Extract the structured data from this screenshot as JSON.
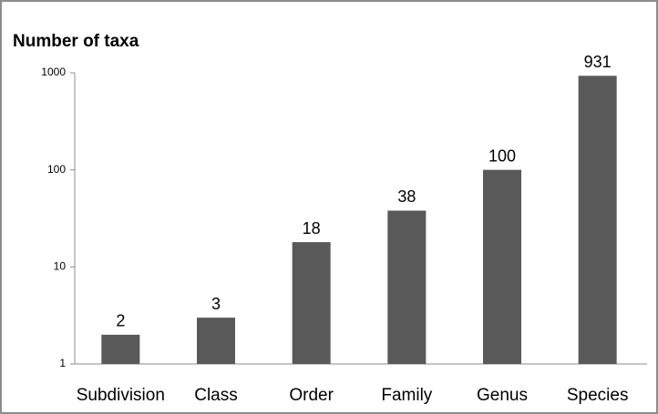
{
  "chart_data": {
    "type": "bar",
    "title": "Number of taxa",
    "categories": [
      "Subdivision",
      "Class",
      "Order",
      "Family",
      "Genus",
      "Species"
    ],
    "values": [
      2,
      3,
      18,
      38,
      100,
      931
    ],
    "color": "#595959",
    "log_scale": true,
    "ylim": [
      1,
      1000
    ],
    "yticks": [
      1,
      10,
      100,
      1000
    ],
    "grid": false
  }
}
